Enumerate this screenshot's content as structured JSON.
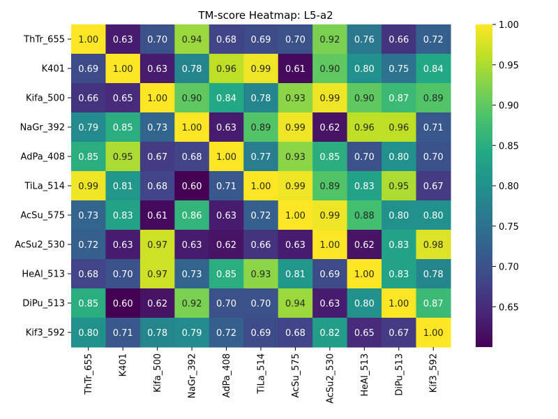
{
  "chart_data": {
    "type": "heatmap",
    "title": "TM-score Heatmap: L5-a2",
    "xlabel": "",
    "ylabel": "",
    "rows": [
      "ThTr_655",
      "K401",
      "Kifa_500",
      "NaGr_392",
      "AdPa_408",
      "TiLa_514",
      "AcSu_575",
      "AcSu2_530",
      "HeAl_513",
      "DiPu_513",
      "Kif3_592"
    ],
    "columns": [
      "ThTr_655",
      "K401",
      "Kifa_500",
      "NaGr_392",
      "AdPa_408",
      "TiLa_514",
      "AcSu_575",
      "AcSu2_530",
      "HeAl_513",
      "DiPu_513",
      "Kif3_592"
    ],
    "values": [
      [
        1.0,
        0.63,
        0.7,
        0.94,
        0.68,
        0.69,
        0.7,
        0.92,
        0.76,
        0.66,
        0.72
      ],
      [
        0.69,
        1.0,
        0.63,
        0.78,
        0.96,
        0.99,
        0.61,
        0.9,
        0.8,
        0.75,
        0.84
      ],
      [
        0.66,
        0.65,
        1.0,
        0.9,
        0.84,
        0.78,
        0.93,
        0.99,
        0.9,
        0.87,
        0.89
      ],
      [
        0.79,
        0.85,
        0.73,
        1.0,
        0.63,
        0.89,
        0.99,
        0.62,
        0.96,
        0.96,
        0.71
      ],
      [
        0.85,
        0.95,
        0.67,
        0.68,
        1.0,
        0.77,
        0.93,
        0.85,
        0.7,
        0.8,
        0.7
      ],
      [
        0.99,
        0.81,
        0.68,
        0.6,
        0.71,
        1.0,
        0.99,
        0.89,
        0.83,
        0.95,
        0.67
      ],
      [
        0.73,
        0.83,
        0.61,
        0.86,
        0.63,
        0.72,
        1.0,
        0.99,
        0.88,
        0.8,
        0.8
      ],
      [
        0.72,
        0.63,
        0.97,
        0.63,
        0.62,
        0.66,
        0.63,
        1.0,
        0.62,
        0.83,
        0.98
      ],
      [
        0.68,
        0.7,
        0.97,
        0.73,
        0.85,
        0.93,
        0.81,
        0.69,
        1.0,
        0.83,
        0.78
      ],
      [
        0.85,
        0.6,
        0.62,
        0.92,
        0.7,
        0.7,
        0.94,
        0.63,
        0.8,
        1.0,
        0.87
      ],
      [
        0.8,
        0.71,
        0.78,
        0.79,
        0.72,
        0.69,
        0.68,
        0.82,
        0.65,
        0.67,
        1.0
      ]
    ],
    "colormap": "viridis",
    "vmin": 0.6,
    "vmax": 1.0,
    "colorbar_ticks": [
      "0.65",
      "0.70",
      "0.75",
      "0.80",
      "0.85",
      "0.90",
      "0.95",
      "1.00"
    ],
    "annotations": true,
    "annotation_format": "2 decimals",
    "grid": false,
    "legend": "colorbar-right"
  }
}
